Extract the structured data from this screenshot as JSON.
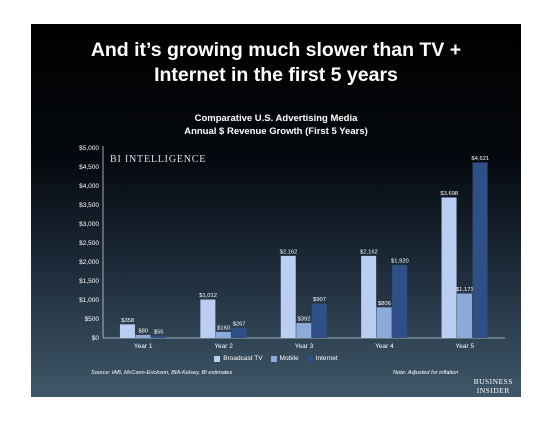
{
  "headline": {
    "line1": "And it’s growing much slower than TV +",
    "line2": "Internet in the first 5 years"
  },
  "watermark": "BI INTELLIGENCE",
  "source": "Source:  IAB, McCann-Erickson, BIA-Kelsey, BI estimates",
  "note": "Note: Adjusted for inflation",
  "brand": {
    "line1": "BUSINESS",
    "line2": "INSIDER"
  },
  "colors": {
    "broadcast_tv": "#b9cef0",
    "mobile": "#8eaadb",
    "internet": "#2f4f87"
  },
  "chart_data": {
    "type": "bar",
    "title": "Comparative U.S. Advertising Media",
    "subtitle": "Annual $ Revenue Growth (First 5 Years)",
    "categories": [
      "Year 1",
      "Year 2",
      "Year 3",
      "Year 4",
      "Year 5"
    ],
    "series": [
      {
        "name": "Broadcast TV",
        "values": [
          358,
          1012,
          2162,
          2162,
          3698
        ],
        "labels": [
          "$358",
          "$1,012",
          "$2,162",
          "$2,162",
          "$3,698"
        ]
      },
      {
        "name": "Mobile",
        "values": [
          80,
          160,
          392,
          806,
          1171
        ],
        "labels": [
          "$80",
          "$160",
          "$392",
          "$806",
          "$1,171"
        ]
      },
      {
        "name": "Internet",
        "values": [
          55,
          267,
          907,
          1920,
          4621
        ],
        "labels": [
          "$55",
          "$267",
          "$907",
          "$1,920",
          "$4,621"
        ]
      }
    ],
    "yticks": [
      "$0",
      "$500",
      "$1,000",
      "$1,500",
      "$2,000",
      "$2,500",
      "$3,000",
      "$3,500",
      "$4,000",
      "$4,500",
      "$5,000"
    ],
    "ylim": [
      0,
      5000
    ],
    "grid": false,
    "legend_position": "bottom"
  }
}
